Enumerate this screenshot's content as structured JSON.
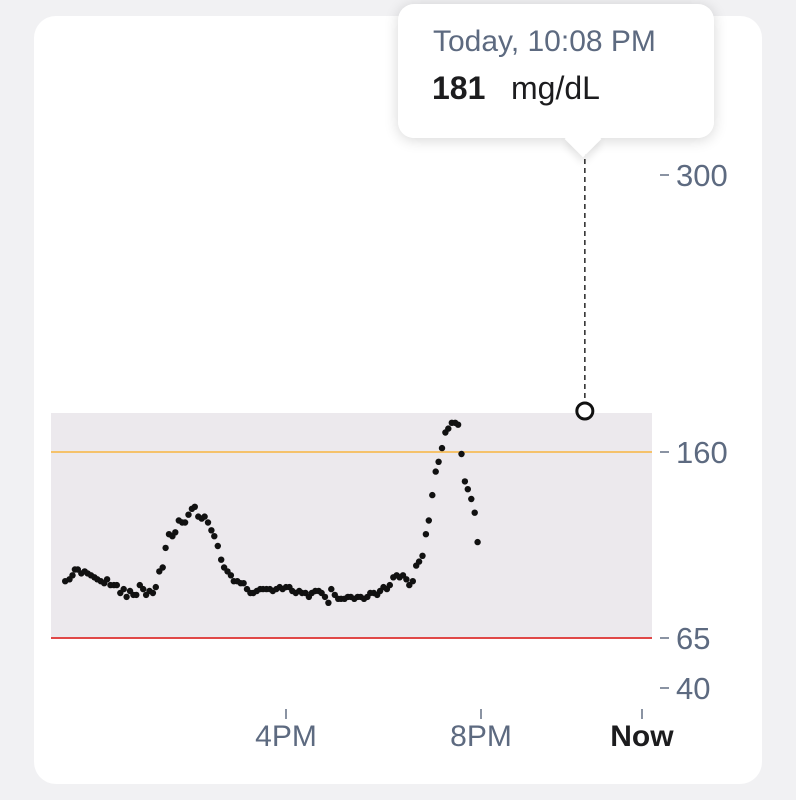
{
  "tooltip": {
    "time": "Today, 10:08 PM",
    "value": "181",
    "unit": "mg/dL"
  },
  "colors": {
    "target_band": "#ece9ed",
    "high_line": "#f5c26b",
    "low_line": "#e04848",
    "points": "#111111"
  },
  "chart_data": {
    "type": "scatter",
    "title": "",
    "xlabel": "",
    "ylabel": "",
    "unit": "mg/dL",
    "x_unit": "hours",
    "x_ticks": [
      {
        "x": 4,
        "label": "4PM"
      },
      {
        "x": 8,
        "label": "8PM"
      },
      {
        "x": 11.3,
        "label": "Now"
      }
    ],
    "y_ticks": [
      300,
      160,
      65,
      40
    ],
    "target_range": [
      65,
      180
    ],
    "high_threshold": 160,
    "low_threshold": 65,
    "selected_point": {
      "x": 10.13,
      "y": 181
    },
    "points": [
      [
        -0.53,
        94
      ],
      [
        -0.44,
        95
      ],
      [
        -0.38,
        97
      ],
      [
        -0.33,
        100
      ],
      [
        -0.27,
        100
      ],
      [
        -0.2,
        98
      ],
      [
        -0.13,
        99
      ],
      [
        -0.07,
        98
      ],
      [
        0.0,
        97
      ],
      [
        0.07,
        96
      ],
      [
        0.13,
        95
      ],
      [
        0.2,
        94
      ],
      [
        0.27,
        93
      ],
      [
        0.33,
        95
      ],
      [
        0.4,
        92
      ],
      [
        0.47,
        92
      ],
      [
        0.53,
        92
      ],
      [
        0.6,
        88
      ],
      [
        0.67,
        90
      ],
      [
        0.73,
        86
      ],
      [
        0.8,
        89
      ],
      [
        0.87,
        87
      ],
      [
        0.93,
        87
      ],
      [
        1.0,
        92
      ],
      [
        1.07,
        90
      ],
      [
        1.13,
        87
      ],
      [
        1.2,
        89
      ],
      [
        1.27,
        88
      ],
      [
        1.33,
        91
      ],
      [
        1.4,
        99
      ],
      [
        1.47,
        101
      ],
      [
        1.53,
        111
      ],
      [
        1.6,
        118
      ],
      [
        1.67,
        117
      ],
      [
        1.73,
        119
      ],
      [
        1.8,
        125
      ],
      [
        1.87,
        124
      ],
      [
        1.93,
        124
      ],
      [
        2.0,
        128
      ],
      [
        2.07,
        131
      ],
      [
        2.13,
        132
      ],
      [
        2.2,
        127
      ],
      [
        2.27,
        126
      ],
      [
        2.33,
        127
      ],
      [
        2.4,
        124
      ],
      [
        2.47,
        120
      ],
      [
        2.53,
        117
      ],
      [
        2.6,
        112
      ],
      [
        2.67,
        105
      ],
      [
        2.73,
        101
      ],
      [
        2.8,
        99
      ],
      [
        2.87,
        97
      ],
      [
        2.93,
        94
      ],
      [
        3.0,
        94
      ],
      [
        3.07,
        93
      ],
      [
        3.13,
        93
      ],
      [
        3.2,
        90
      ],
      [
        3.27,
        88
      ],
      [
        3.33,
        88
      ],
      [
        3.4,
        89
      ],
      [
        3.47,
        90
      ],
      [
        3.53,
        90
      ],
      [
        3.6,
        90
      ],
      [
        3.67,
        90
      ],
      [
        3.73,
        89
      ],
      [
        3.8,
        90
      ],
      [
        3.87,
        91
      ],
      [
        3.93,
        90
      ],
      [
        4.0,
        91
      ],
      [
        4.07,
        91
      ],
      [
        4.13,
        89
      ],
      [
        4.2,
        88
      ],
      [
        4.27,
        89
      ],
      [
        4.33,
        88
      ],
      [
        4.4,
        88
      ],
      [
        4.47,
        86
      ],
      [
        4.53,
        88
      ],
      [
        4.6,
        89
      ],
      [
        4.67,
        89
      ],
      [
        4.73,
        88
      ],
      [
        4.8,
        86
      ],
      [
        4.87,
        83
      ],
      [
        4.93,
        90
      ],
      [
        5.0,
        87
      ],
      [
        5.07,
        85
      ],
      [
        5.13,
        85
      ],
      [
        5.2,
        85
      ],
      [
        5.27,
        86
      ],
      [
        5.33,
        86
      ],
      [
        5.4,
        85
      ],
      [
        5.47,
        86
      ],
      [
        5.53,
        86
      ],
      [
        5.6,
        85
      ],
      [
        5.67,
        86
      ],
      [
        5.73,
        88
      ],
      [
        5.8,
        88
      ],
      [
        5.87,
        87
      ],
      [
        5.93,
        89
      ],
      [
        6.0,
        91
      ],
      [
        6.07,
        90
      ],
      [
        6.13,
        92
      ],
      [
        6.2,
        96
      ],
      [
        6.27,
        97
      ],
      [
        6.33,
        96
      ],
      [
        6.4,
        97
      ],
      [
        6.47,
        95
      ],
      [
        6.53,
        92
      ],
      [
        6.6,
        94
      ],
      [
        6.67,
        102
      ],
      [
        6.73,
        104
      ],
      [
        6.8,
        107
      ],
      [
        6.87,
        118
      ],
      [
        6.93,
        125
      ],
      [
        7.0,
        138
      ],
      [
        7.07,
        150
      ],
      [
        7.13,
        155
      ],
      [
        7.2,
        162
      ],
      [
        7.27,
        170
      ],
      [
        7.33,
        172
      ],
      [
        7.4,
        175
      ],
      [
        7.47,
        175
      ],
      [
        7.53,
        174
      ],
      [
        7.6,
        159
      ],
      [
        7.67,
        145
      ],
      [
        7.73,
        141
      ],
      [
        7.8,
        136
      ],
      [
        7.87,
        129
      ],
      [
        7.93,
        114
      ]
    ]
  }
}
